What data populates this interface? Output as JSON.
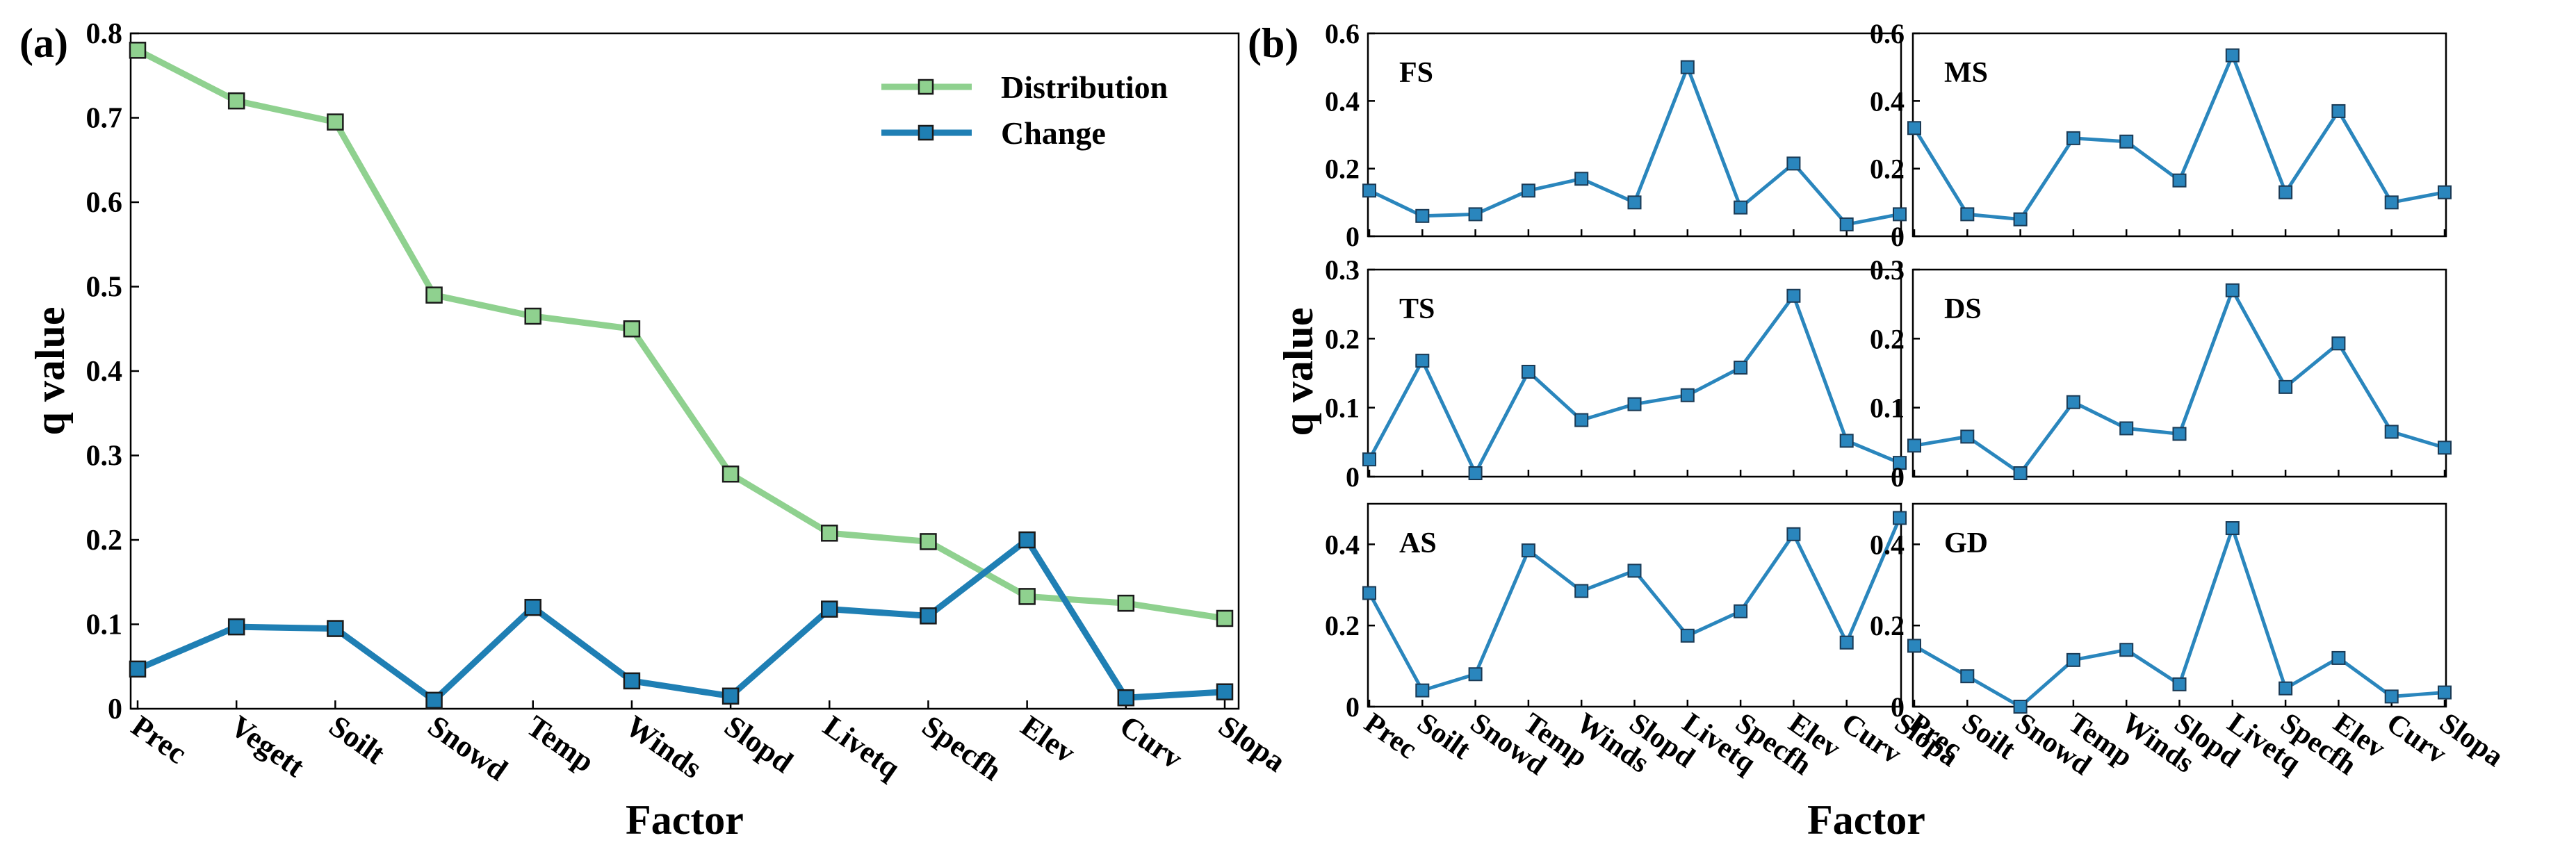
{
  "figure": {
    "panel_a_label": "(a)",
    "panel_b_label": "(b)",
    "y_axis_title": "q value",
    "x_axis_title": "Factor"
  },
  "colors": {
    "distribution": "#8fd18f",
    "change": "#1f7fb4",
    "subplot_line": "#2a86bd",
    "marker_edge": "#1a3a55"
  },
  "chart_data": [
    {
      "id": "a",
      "type": "line",
      "xlabel": "Factor",
      "ylabel": "q value",
      "categories": [
        "Prec",
        "Vegett",
        "Soilt",
        "Snowd",
        "Temp",
        "Winds",
        "Slopd",
        "Livetq",
        "Specfh",
        "Elev",
        "Curv",
        "Slopa"
      ],
      "ylim": [
        0,
        0.8
      ],
      "yticks": [
        "0",
        "0.1",
        "0.2",
        "0.3",
        "0.4",
        "0.5",
        "0.6",
        "0.7",
        "0.8"
      ],
      "legend_position": "top-right",
      "grid": false,
      "series": [
        {
          "name": "Distribution",
          "values": [
            0.78,
            0.72,
            0.695,
            0.49,
            0.465,
            0.45,
            0.278,
            0.208,
            0.198,
            0.133,
            0.125,
            0.107
          ]
        },
        {
          "name": "Change",
          "values": [
            0.047,
            0.097,
            0.095,
            0.01,
            0.12,
            0.033,
            0.015,
            0.118,
            0.11,
            0.2,
            0.013,
            0.02
          ]
        }
      ]
    },
    {
      "id": "b",
      "type": "line",
      "xlabel": "Factor",
      "ylabel": "q value",
      "categories": [
        "Prec",
        "Soilt",
        "Snowd",
        "Temp",
        "Winds",
        "Slopd",
        "Livetq",
        "Specfh",
        "Elev",
        "Curv",
        "Slopa"
      ],
      "grid": false,
      "subplots": [
        {
          "label": "FS",
          "ylim": [
            0,
            0.6
          ],
          "yticks": [
            "0",
            "0.2",
            "0.4",
            "0.6"
          ],
          "values": [
            0.135,
            0.06,
            0.065,
            0.135,
            0.17,
            0.1,
            0.5,
            0.085,
            0.215,
            0.035,
            0.065
          ]
        },
        {
          "label": "MS",
          "ylim": [
            0,
            0.6
          ],
          "yticks": [
            "0",
            "0.2",
            "0.4",
            "0.6"
          ],
          "values": [
            0.32,
            0.065,
            0.05,
            0.29,
            0.28,
            0.165,
            0.535,
            0.13,
            0.37,
            0.1,
            0.13
          ]
        },
        {
          "label": "TS",
          "ylim": [
            0,
            0.3
          ],
          "yticks": [
            "0",
            "0.1",
            "0.2",
            "0.3"
          ],
          "values": [
            0.025,
            0.168,
            0.005,
            0.152,
            0.082,
            0.105,
            0.118,
            0.158,
            0.262,
            0.052,
            0.02
          ]
        },
        {
          "label": "DS",
          "ylim": [
            0,
            0.3
          ],
          "yticks": [
            "0",
            "0.1",
            "0.2",
            "0.3"
          ],
          "values": [
            0.045,
            0.058,
            0.005,
            0.108,
            0.07,
            0.062,
            0.27,
            0.13,
            0.193,
            0.065,
            0.042
          ]
        },
        {
          "label": "AS",
          "ylim": [
            0,
            0.5
          ],
          "yticks": [
            "0",
            "0.2",
            "0.4"
          ],
          "values": [
            0.28,
            0.04,
            0.08,
            0.385,
            0.285,
            0.335,
            0.175,
            0.235,
            0.425,
            0.158,
            0.465
          ]
        },
        {
          "label": "GD",
          "ylim": [
            0,
            0.5
          ],
          "yticks": [
            "0",
            "0.2",
            "0.4"
          ],
          "values": [
            0.15,
            0.075,
            0.0,
            0.115,
            0.14,
            0.055,
            0.44,
            0.045,
            0.12,
            0.025,
            0.035
          ]
        }
      ]
    }
  ]
}
